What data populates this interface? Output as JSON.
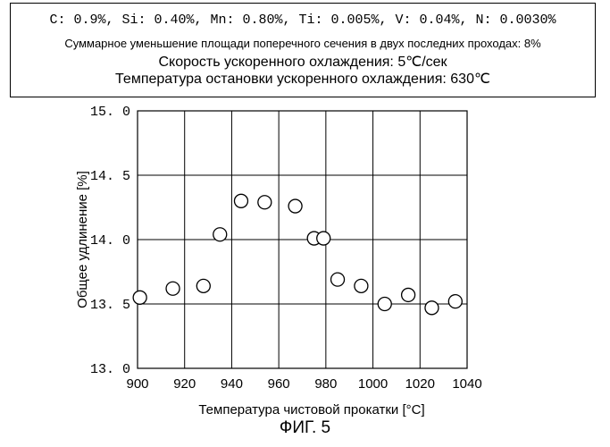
{
  "header": {
    "composition": "C: 0.9%, Si: 0.40%, Mn: 0.80%, Ti: 0.005%, V: 0.04%, N: 0.0030%",
    "reduction": "Суммарное уменьшение площади поперечного сечения в двух последних проходах: 8%",
    "cooling_rate": "Скорость ускоренного охлаждения:  5℃/сек",
    "stop_temperature": "Температура остановки ускоренного охлаждения: 630℃"
  },
  "figure_label": "ФИГ. 5",
  "chart_data": {
    "type": "scatter",
    "title": "",
    "xlabel": "Температура чистовой прокатки [°C]",
    "ylabel": "Общее удлинение [%]",
    "xlim": [
      900,
      1040
    ],
    "ylim": [
      13.0,
      15.0
    ],
    "x_ticks": [
      900,
      920,
      940,
      960,
      980,
      1000,
      1020,
      1040
    ],
    "y_ticks": [
      13.0,
      13.5,
      14.0,
      14.5,
      15.0
    ],
    "x_tick_labels": [
      "900",
      "920",
      "940",
      "960",
      "980",
      "1000",
      "1020",
      "1040"
    ],
    "y_tick_labels": [
      "13. 0",
      "13. 5",
      "14. 0",
      "14. 5",
      "15. 0"
    ],
    "grid": true,
    "marker": "open-circle",
    "points": [
      {
        "x": 901,
        "y": 13.55
      },
      {
        "x": 915,
        "y": 13.62
      },
      {
        "x": 928,
        "y": 13.64
      },
      {
        "x": 935,
        "y": 14.04
      },
      {
        "x": 944,
        "y": 14.3
      },
      {
        "x": 954,
        "y": 14.29
      },
      {
        "x": 967,
        "y": 14.26
      },
      {
        "x": 975,
        "y": 14.01
      },
      {
        "x": 979,
        "y": 14.01
      },
      {
        "x": 985,
        "y": 13.69
      },
      {
        "x": 995,
        "y": 13.64
      },
      {
        "x": 1005,
        "y": 13.5
      },
      {
        "x": 1015,
        "y": 13.57
      },
      {
        "x": 1025,
        "y": 13.47
      },
      {
        "x": 1035,
        "y": 13.52
      }
    ]
  }
}
